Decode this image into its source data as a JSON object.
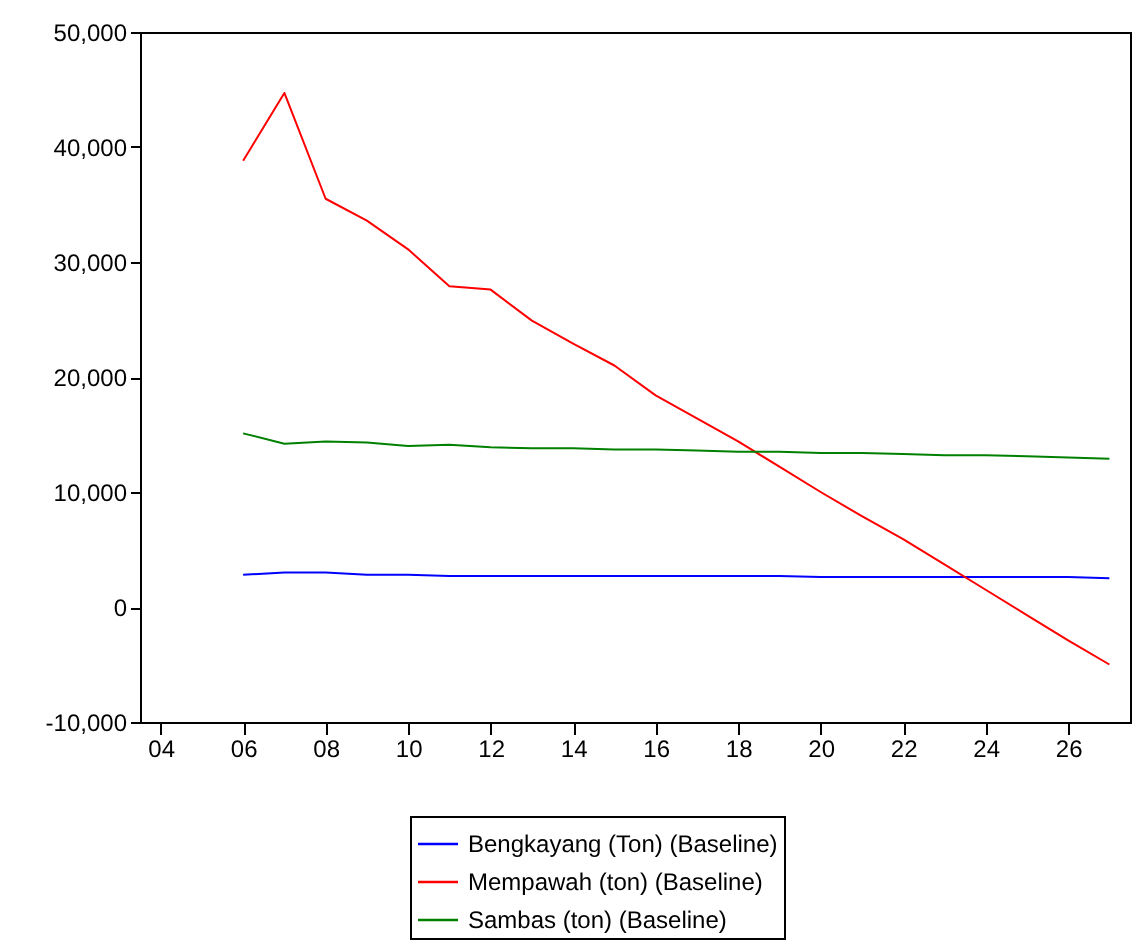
{
  "chart_data": {
    "type": "line",
    "x": [
      2006,
      2007,
      2008,
      2009,
      2010,
      2011,
      2012,
      2013,
      2014,
      2015,
      2016,
      2017,
      2018,
      2019,
      2020,
      2021,
      2022,
      2023,
      2024,
      2025,
      2026,
      2027
    ],
    "series": [
      {
        "name": "Bengkayang (Ton) (Baseline)",
        "color": "#0000ff",
        "values": [
          2800,
          3000,
          3000,
          2800,
          2800,
          2700,
          2700,
          2700,
          2700,
          2700,
          2700,
          2700,
          2700,
          2700,
          2600,
          2600,
          2600,
          2600,
          2600,
          2600,
          2600,
          2500
        ]
      },
      {
        "name": "Mempawah (ton) (Baseline)",
        "color": "#ff0000",
        "values": [
          38800,
          44700,
          35500,
          33600,
          31100,
          27900,
          27600,
          24900,
          22900,
          21000,
          18400,
          16400,
          14400,
          12200,
          10000,
          7900,
          5900,
          3700,
          1500,
          -700,
          -2900,
          -5000
        ]
      },
      {
        "name": "Sambas (ton) (Baseline)",
        "color": "#008000",
        "values": [
          15100,
          14200,
          14400,
          14300,
          14000,
          14100,
          13900,
          13800,
          13800,
          13700,
          13700,
          13600,
          13500,
          13500,
          13400,
          13400,
          13300,
          13200,
          13200,
          13100,
          13000,
          12900
        ]
      }
    ],
    "xlim": [
      2003.5,
      2027.5
    ],
    "xticks": [
      {
        "value": 2004,
        "label": "04"
      },
      {
        "value": 2006,
        "label": "06"
      },
      {
        "value": 2008,
        "label": "08"
      },
      {
        "value": 2010,
        "label": "10"
      },
      {
        "value": 2012,
        "label": "12"
      },
      {
        "value": 2014,
        "label": "14"
      },
      {
        "value": 2016,
        "label": "16"
      },
      {
        "value": 2018,
        "label": "18"
      },
      {
        "value": 2020,
        "label": "20"
      },
      {
        "value": 2022,
        "label": "22"
      },
      {
        "value": 2024,
        "label": "24"
      },
      {
        "value": 2026,
        "label": "26"
      }
    ],
    "ylim": [
      -10000,
      50000
    ],
    "yticks": [
      {
        "value": -10000,
        "label": "-10,000"
      },
      0,
      {
        "value": 10000,
        "label": "10,000"
      },
      {
        "value": 20000,
        "label": "20,000"
      },
      {
        "value": 30000,
        "label": "30,000"
      },
      {
        "value": 40000,
        "label": "40,000"
      },
      {
        "value": 50000,
        "label": "50,000"
      }
    ],
    "grid": false,
    "legend": "bottom",
    "marker": "none",
    "line_style": "solid"
  }
}
